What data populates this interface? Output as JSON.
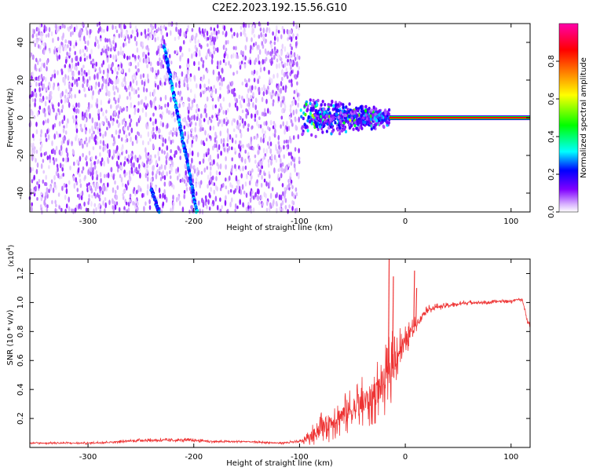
{
  "title": "C2E2.2023.192.15.56.G10",
  "chart_data": [
    {
      "type": "heatmap",
      "name": "spectrogram",
      "xlabel": "Height of straight line (km)",
      "ylabel": "Frequency (Hz)",
      "xlim": [
        -355,
        118
      ],
      "ylim": [
        -50,
        50
      ],
      "xticks": [
        -300,
        -200,
        -100,
        0,
        100
      ],
      "xtick_labels": [
        "-300",
        "-200",
        "-100",
        "0",
        "100"
      ],
      "yticks": [
        -40,
        -20,
        0,
        20,
        40
      ],
      "ytick_labels": [
        "-40",
        "-20",
        "0",
        "20",
        "40"
      ],
      "colorbar": {
        "label": "Normalized spectral amplitude",
        "range": [
          0,
          1
        ],
        "ticks": [
          0.0,
          0.2,
          0.4,
          0.6,
          0.8
        ],
        "tick_labels": [
          "0.0",
          "0.2",
          "0.4",
          "0.6",
          "0.8"
        ],
        "colors": [
          "#ffffff",
          "#d9b3ff",
          "#8000ff",
          "#0000ff",
          "#00ffff",
          "#00ff00",
          "#ffff00",
          "#ff8000",
          "#ff0000",
          "#ff00aa"
        ]
      },
      "regions": [
        {
          "kind": "broadband-noise",
          "x": [
            -355,
            -100
          ],
          "y": [
            -50,
            50
          ],
          "amplitude": 0.1
        },
        {
          "kind": "diagonal-streak",
          "x_start": -228,
          "y_start": 38,
          "x_end": -197,
          "y_end": -50,
          "amplitude": 0.35
        },
        {
          "kind": "secondary-streak",
          "x_start": -240,
          "y_start": -38,
          "x_end": -233,
          "y_end": -50,
          "amplitude": 0.3
        },
        {
          "kind": "signal-cluster",
          "x": [
            -100,
            -15
          ],
          "y": [
            -12,
            14
          ],
          "amplitude": 0.4
        },
        {
          "kind": "tone-line",
          "x": [
            -15,
            118
          ],
          "y": 0,
          "amplitude": 0.9
        }
      ]
    },
    {
      "type": "line",
      "name": "snr",
      "xlabel": "Height of straight line (km)",
      "ylabel": "SNR (10 * v/v)",
      "y_multiplier": "(x10",
      "y_multiplier_exp": "4",
      "y_multiplier_close": ")",
      "xlim": [
        -355,
        118
      ],
      "ylim": [
        0,
        1.3
      ],
      "xticks": [
        -300,
        -200,
        -100,
        0,
        100
      ],
      "xtick_labels": [
        "-300",
        "-200",
        "-100",
        "0",
        "100"
      ],
      "yticks": [
        0.2,
        0.4,
        0.6,
        0.8,
        1.0,
        1.2
      ],
      "ytick_labels": [
        "0.2",
        "0.4",
        "0.6",
        "0.8",
        "1.0",
        "1.2"
      ],
      "series": [
        {
          "name": "SNR",
          "color": "#ee3333",
          "x": [
            -355,
            -330,
            -300,
            -270,
            -250,
            -230,
            -210,
            -200,
            -180,
            -150,
            -120,
            -100,
            -90,
            -80,
            -70,
            -60,
            -50,
            -40,
            -30,
            -20,
            -15,
            -10,
            -5,
            0,
            5,
            10,
            15,
            20,
            30,
            40,
            50,
            60,
            70,
            80,
            90,
            100,
            105,
            110,
            113,
            116,
            118
          ],
          "values": [
            0.03,
            0.03,
            0.03,
            0.04,
            0.05,
            0.05,
            0.05,
            0.05,
            0.04,
            0.04,
            0.03,
            0.04,
            0.07,
            0.14,
            0.18,
            0.22,
            0.26,
            0.3,
            0.36,
            0.45,
            0.52,
            0.62,
            0.68,
            0.72,
            0.8,
            0.85,
            0.9,
            0.95,
            0.97,
            0.98,
            0.99,
            1.0,
            1.0,
            1.0,
            1.01,
            1.01,
            1.02,
            1.02,
            0.96,
            0.86,
            0.85
          ],
          "noise_amplitude": [
            0.008,
            0.008,
            0.008,
            0.01,
            0.012,
            0.015,
            0.015,
            0.012,
            0.01,
            0.008,
            0.008,
            0.012,
            0.06,
            0.12,
            0.14,
            0.16,
            0.18,
            0.2,
            0.22,
            0.24,
            0.26,
            0.22,
            0.18,
            0.12,
            0.08,
            0.06,
            0.04,
            0.03,
            0.025,
            0.02,
            0.02,
            0.015,
            0.015,
            0.015,
            0.015,
            0.015,
            0.015,
            0.015,
            0.02,
            0.02,
            0.02
          ]
        }
      ],
      "spikes": [
        {
          "x": -16,
          "value": 1.3
        },
        {
          "x": -12,
          "value": 1.18
        },
        {
          "x": 8,
          "value": 1.22
        },
        {
          "x": 10,
          "value": 1.1
        }
      ]
    }
  ]
}
